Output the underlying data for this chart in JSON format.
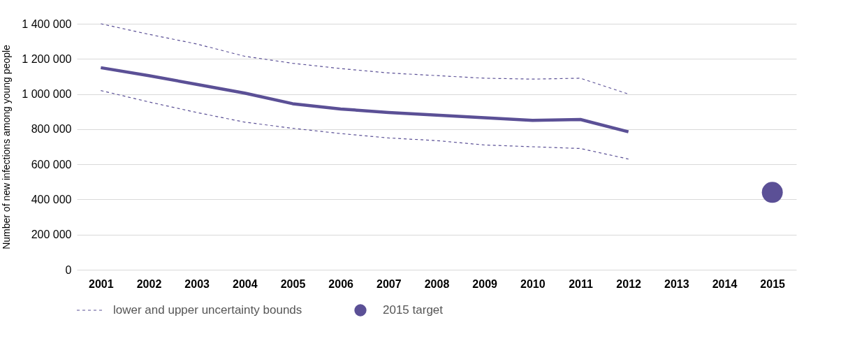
{
  "chart_data": {
    "type": "line",
    "ylabel": "Number of new infections among young people",
    "categories": [
      "2001",
      "2002",
      "2003",
      "2004",
      "2005",
      "2006",
      "2007",
      "2008",
      "2009",
      "2010",
      "2011",
      "2012",
      "2013",
      "2014",
      "2015"
    ],
    "series": [
      {
        "color": "#5b5096",
        "line_style": "solid",
        "values": [
          1150000,
          1105000,
          1055000,
          1005000,
          945000,
          915000,
          895000,
          880000,
          865000,
          850000,
          855000,
          785000,
          null,
          null,
          null
        ]
      },
      {
        "name": "lower and upper uncertainty bounds",
        "color": "#5b5096",
        "line_style": "dashed",
        "values": [
          1020000,
          955000,
          895000,
          840000,
          805000,
          775000,
          750000,
          735000,
          710000,
          700000,
          690000,
          630000,
          null,
          null,
          null
        ]
      },
      {
        "color": "#5b5096",
        "line_style": "dashed",
        "values": [
          1400000,
          1340000,
          1285000,
          1215000,
          1175000,
          1145000,
          1120000,
          1105000,
          1090000,
          1085000,
          1090000,
          1000000,
          null,
          null,
          null
        ]
      },
      {
        "name": "2015 target",
        "type": "scatter",
        "marker": "circle",
        "color": "#5b5096",
        "values": [
          null,
          null,
          null,
          null,
          null,
          null,
          null,
          null,
          null,
          null,
          null,
          null,
          null,
          null,
          440000
        ]
      }
    ],
    "ylim": [
      0,
      1400000
    ],
    "yticks": [
      {
        "value": 0,
        "label": "0"
      },
      {
        "value": 200000,
        "label": "200 000"
      },
      {
        "value": 400000,
        "label": "400 000"
      },
      {
        "value": 600000,
        "label": "600 000"
      },
      {
        "value": 800000,
        "label": "800 000"
      },
      {
        "value": 1000000,
        "label": "1 000 000"
      },
      {
        "value": 1200000,
        "label": "1 200 000"
      },
      {
        "value": 1400000,
        "label": "1 400 000"
      }
    ],
    "grid": "y",
    "legend": "bottom left"
  }
}
